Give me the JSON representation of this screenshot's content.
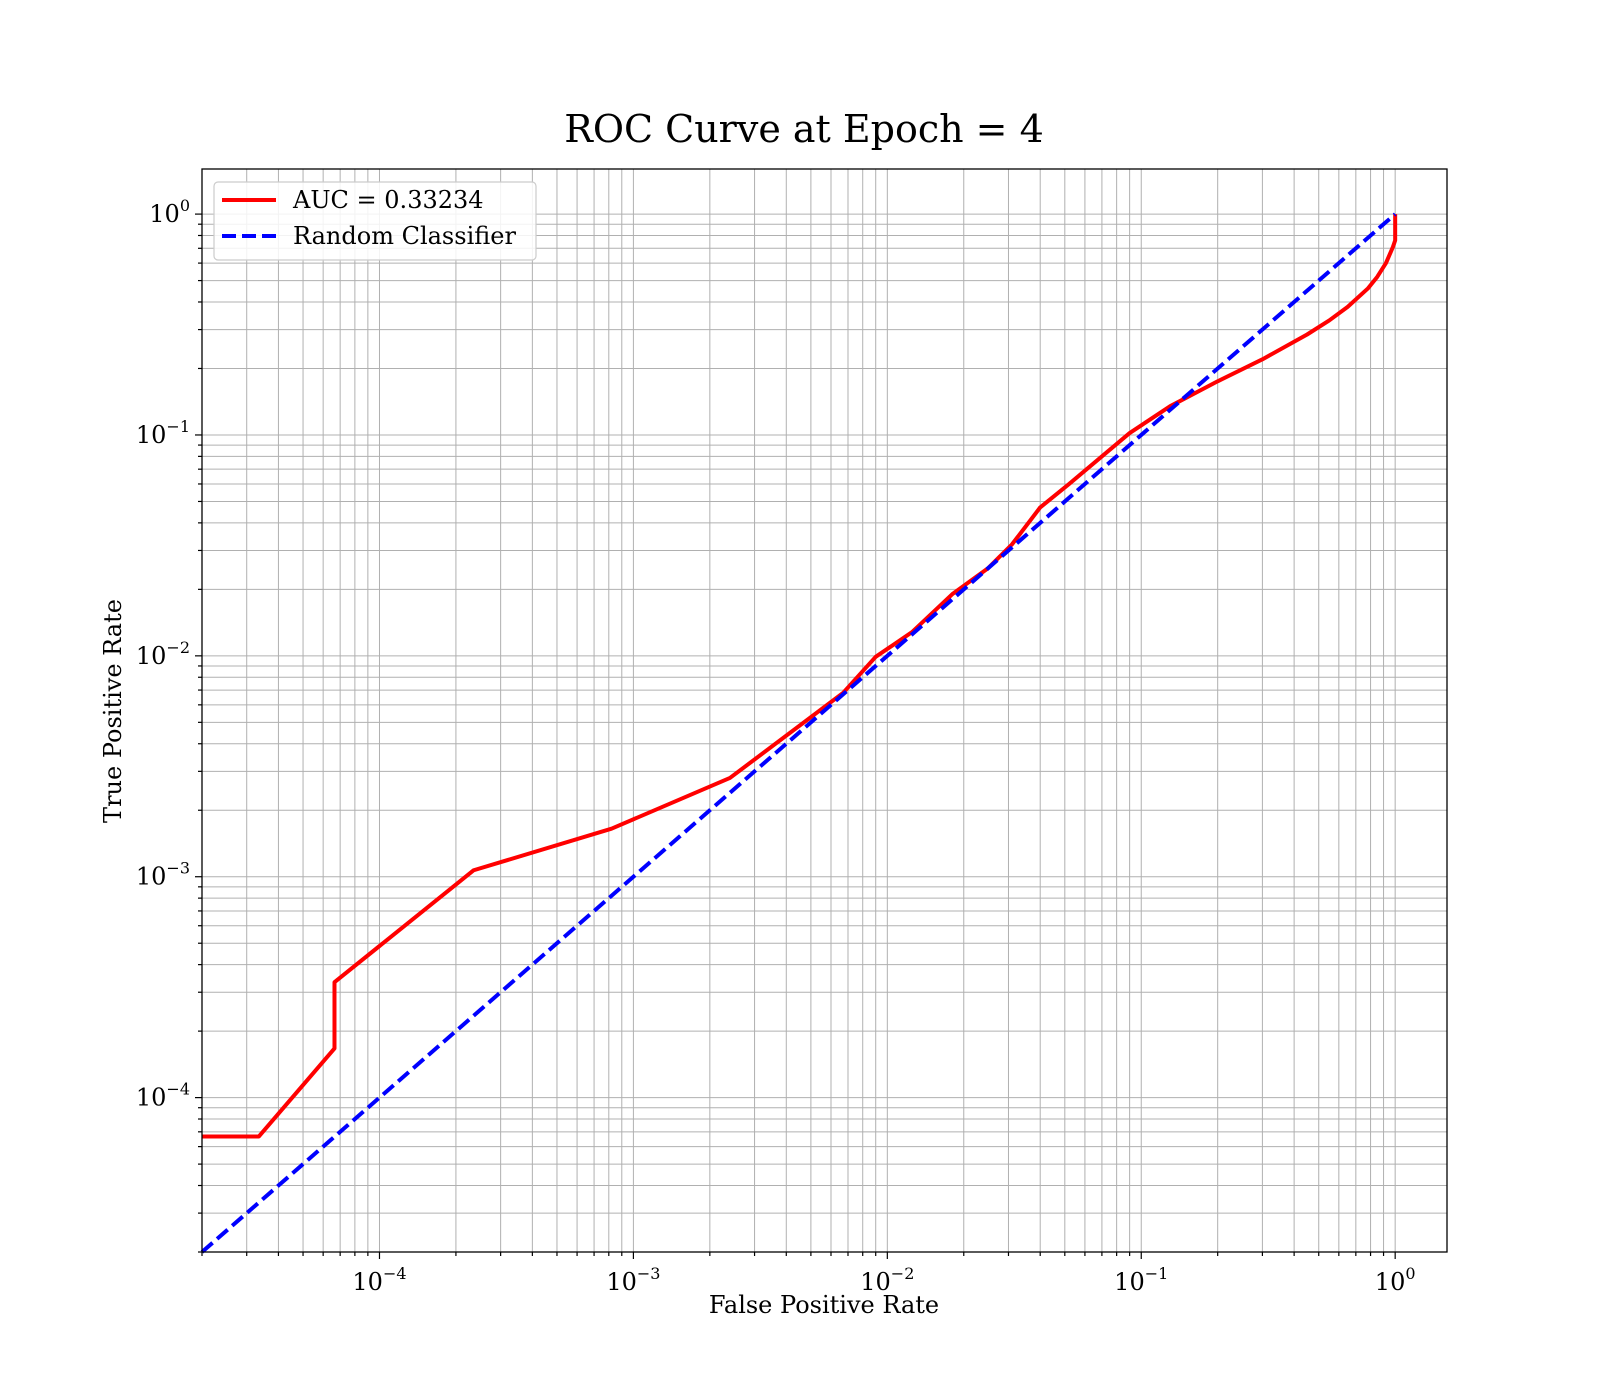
{
  "chart_data": {
    "type": "line",
    "title": "ROC Curve at Epoch = 4",
    "xlabel": "False Positive Rate",
    "ylabel": "True Positive Rate",
    "x_scale": "log",
    "y_scale": "log",
    "xlim": [
      2e-05,
      1.6
    ],
    "ylim": [
      2e-05,
      1.6
    ],
    "grid": true,
    "legend_position": "top-left",
    "x_ticks": [
      {
        "base": "10",
        "exp": "−4",
        "value": 0.0001
      },
      {
        "base": "10",
        "exp": "−3",
        "value": 0.001
      },
      {
        "base": "10",
        "exp": "−2",
        "value": 0.01
      },
      {
        "base": "10",
        "exp": "−1",
        "value": 0.1
      },
      {
        "base": "10",
        "exp": "0",
        "value": 1
      }
    ],
    "y_ticks": [
      {
        "base": "10",
        "exp": "0",
        "value": 1
      },
      {
        "base": "10",
        "exp": "−1",
        "value": 0.1
      },
      {
        "base": "10",
        "exp": "−2",
        "value": 0.01
      },
      {
        "base": "10",
        "exp": "−3",
        "value": 0.001
      },
      {
        "base": "10",
        "exp": "−4",
        "value": 0.0001
      }
    ],
    "series": [
      {
        "name": "AUC = 0.33234",
        "color": "#ff0000",
        "dash": "solid",
        "x": [
          2e-05,
          3.35e-05,
          6.65e-05,
          6.65e-05,
          0.000235,
          0.00082,
          0.0024,
          0.0067,
          0.009,
          0.0125,
          0.018,
          0.025,
          0.031,
          0.04,
          0.052,
          0.09,
          0.13,
          0.2,
          0.3,
          0.45,
          0.55,
          0.65,
          0.78,
          0.85,
          0.92,
          0.98,
          1.0,
          1.0
        ],
        "y": [
          6.67e-05,
          6.67e-05,
          0.000167,
          0.000333,
          0.00107,
          0.00165,
          0.0028,
          0.0068,
          0.0099,
          0.0128,
          0.019,
          0.025,
          0.032,
          0.047,
          0.06,
          0.102,
          0.135,
          0.175,
          0.22,
          0.285,
          0.33,
          0.38,
          0.46,
          0.52,
          0.6,
          0.71,
          0.76,
          1.0
        ]
      },
      {
        "name": "Random Classifier",
        "color": "#0000ff",
        "dash": "dashed",
        "x": [
          2e-05,
          1.0
        ],
        "y": [
          2e-05,
          1.0
        ]
      }
    ]
  }
}
